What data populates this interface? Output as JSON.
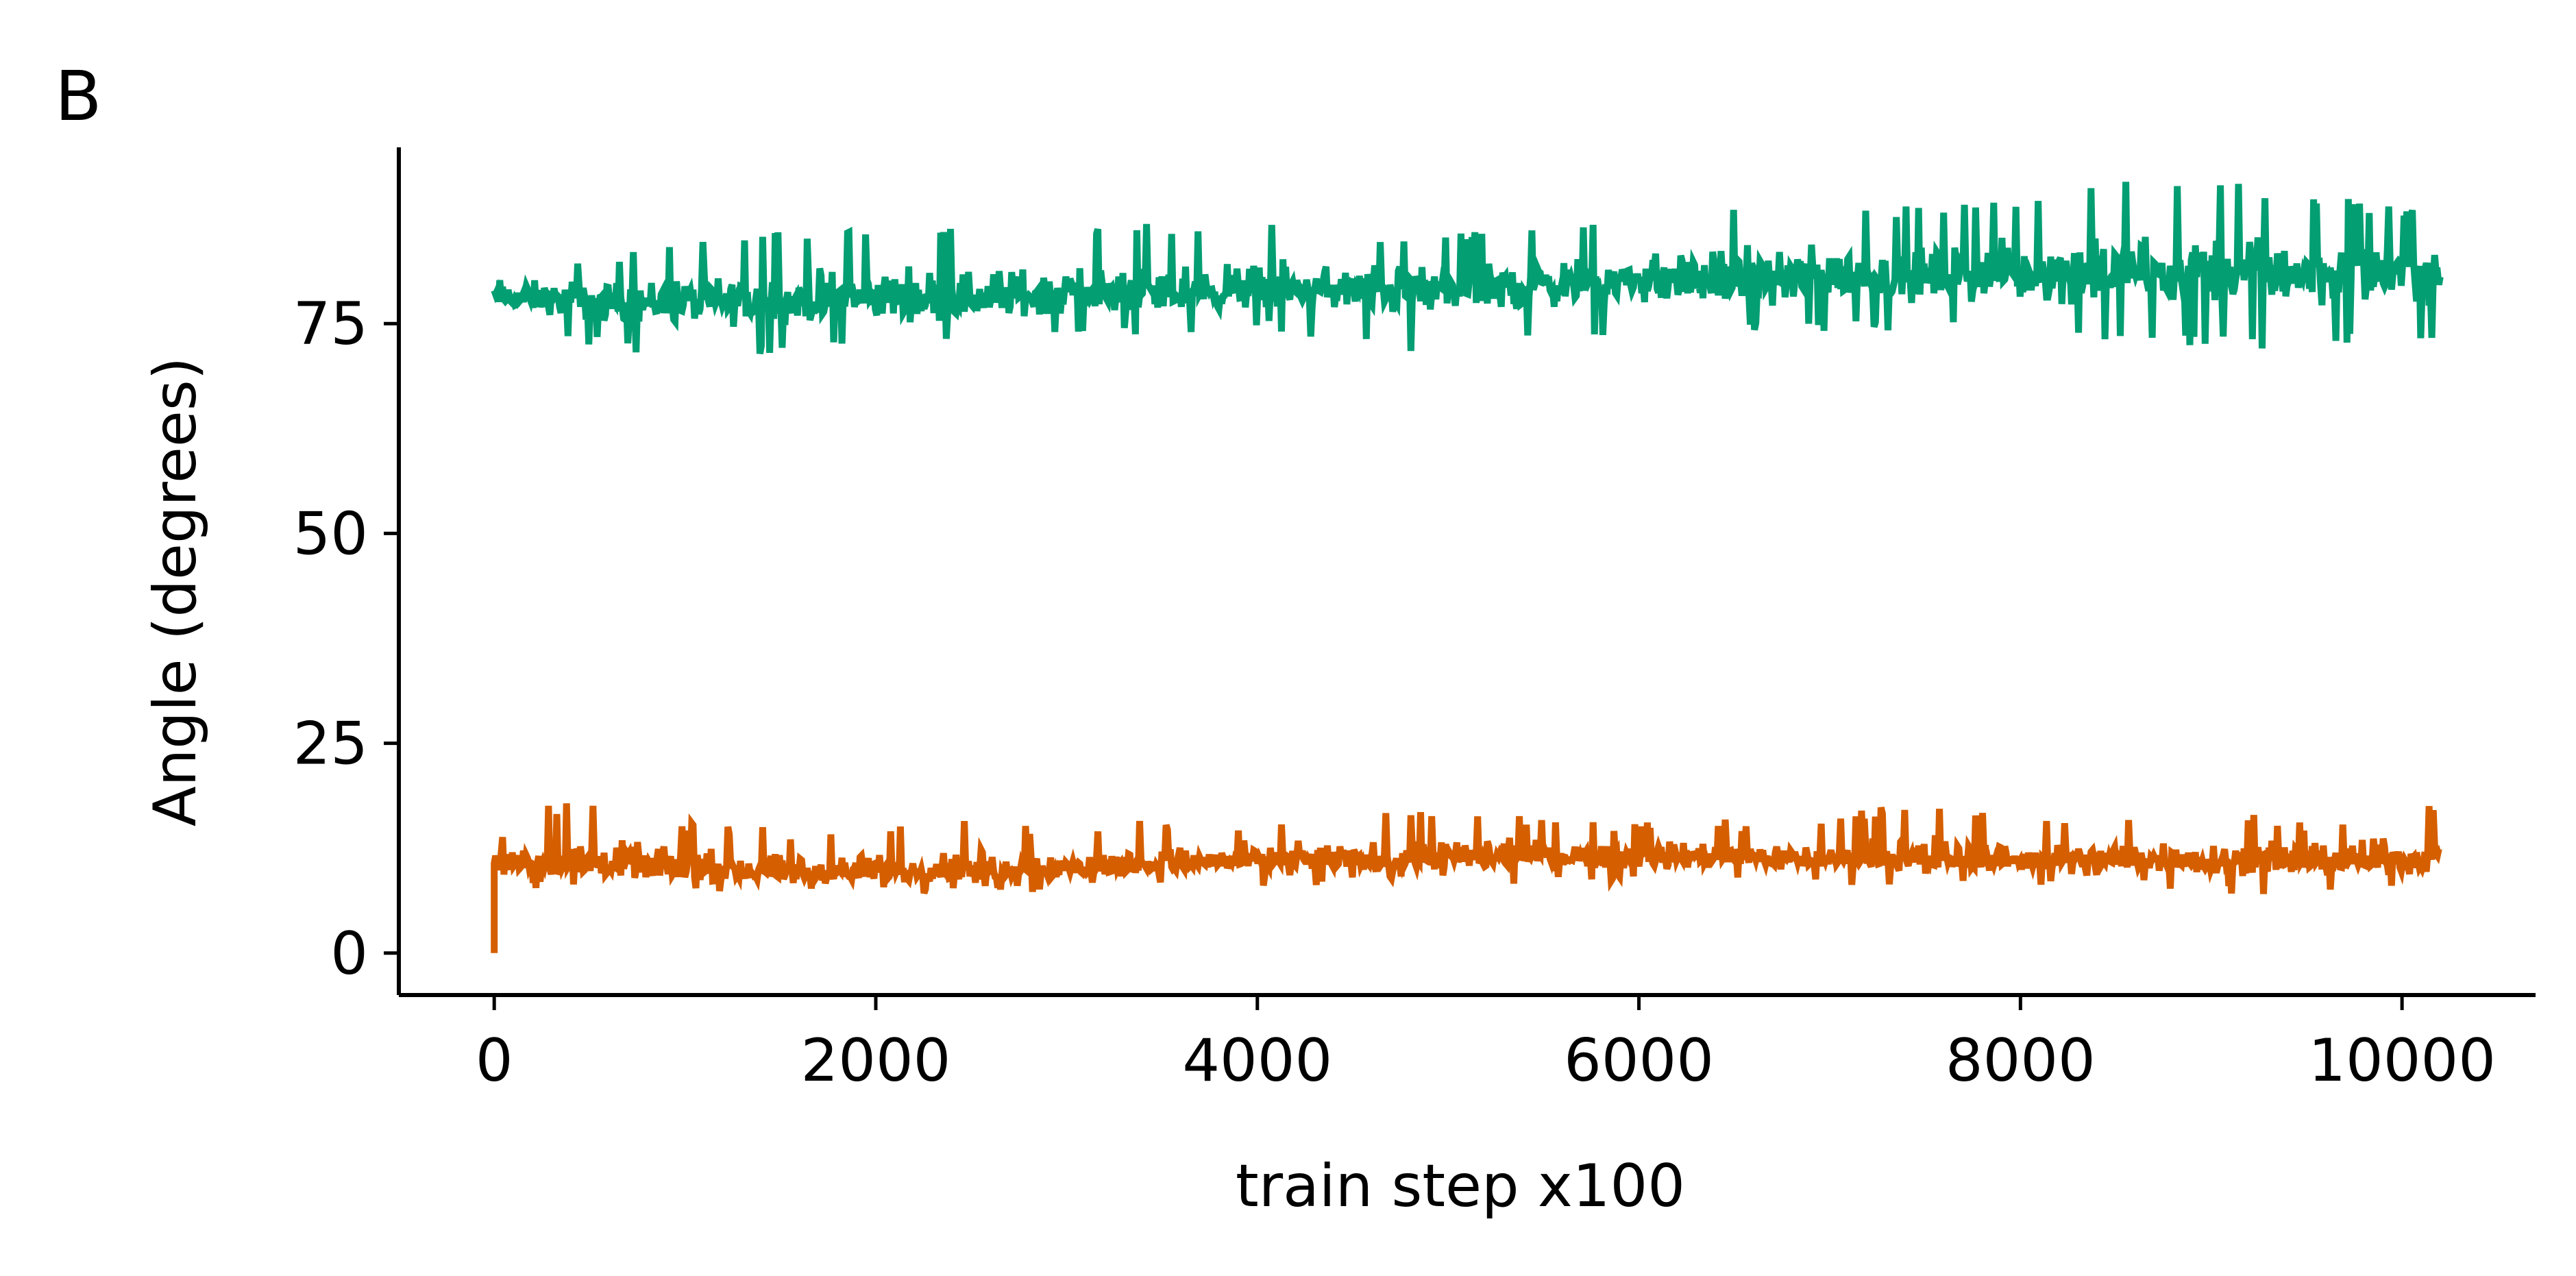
{
  "panel_label": "B",
  "chart_data": {
    "type": "line",
    "title": "",
    "xlabel": "train step x100",
    "ylabel": "Angle (degrees)",
    "xlim": [
      -500,
      10700
    ],
    "ylim": [
      -5,
      96
    ],
    "x_ticks": [
      0,
      2000,
      4000,
      6000,
      8000,
      10000
    ],
    "x_tick_labels": [
      "0",
      "2000",
      "4000",
      "6000",
      "8000",
      "10000"
    ],
    "y_ticks": [
      0,
      25,
      50,
      75
    ],
    "y_tick_labels": [
      "0",
      "25",
      "50",
      "75"
    ],
    "grid": false,
    "legend": "none",
    "series": [
      {
        "color": "#049E73",
        "x": [
          0,
          500,
          1000,
          1500,
          2000,
          2500,
          3000,
          3500,
          4000,
          4500,
          5000,
          5500,
          6000,
          6500,
          7000,
          7500,
          8000,
          8500,
          9000,
          9500,
          10200
        ],
        "y_mean": [
          78,
          77.5,
          77.5,
          77.5,
          78,
          78,
          78.5,
          78.5,
          79,
          79,
          79,
          79.5,
          80,
          80,
          80.5,
          80.5,
          81,
          81,
          81,
          81,
          81
        ],
        "y_min": [
          76,
          72,
          71,
          71,
          72,
          72,
          73,
          73,
          74,
          73,
          70,
          73,
          74,
          74,
          74,
          74,
          73,
          73,
          72,
          72,
          73
        ],
        "y_max": [
          84,
          83,
          85,
          86,
          87,
          87,
          87,
          87,
          87,
          86,
          86,
          87,
          89,
          89,
          89,
          89,
          90,
          92,
          92,
          91,
          88
        ]
      },
      {
        "color": "#D55E00",
        "x": [
          0,
          500,
          1000,
          1500,
          2000,
          2500,
          3000,
          3500,
          4000,
          4500,
          5000,
          5500,
          6000,
          6500,
          7000,
          7500,
          8000,
          8500,
          9000,
          9500,
          10200
        ],
        "y_mean": [
          11,
          10.5,
          10,
          9.5,
          9.5,
          10,
          10,
          10.5,
          11,
          11,
          11,
          11.5,
          11.5,
          11.5,
          11,
          11,
          11,
          11,
          11,
          11,
          11
        ],
        "y_min": [
          7,
          7,
          7,
          6,
          7,
          7,
          7,
          8,
          8,
          8,
          8,
          8,
          8,
          8,
          8,
          8,
          8,
          8,
          7,
          7,
          7
        ],
        "y_max": [
          18,
          18,
          16,
          15,
          15,
          16,
          15,
          16,
          16,
          16,
          18,
          16,
          16,
          16,
          16,
          19,
          16,
          17,
          17,
          16,
          18
        ],
        "initial_point": {
          "x": 0,
          "y": 0
        }
      }
    ]
  }
}
